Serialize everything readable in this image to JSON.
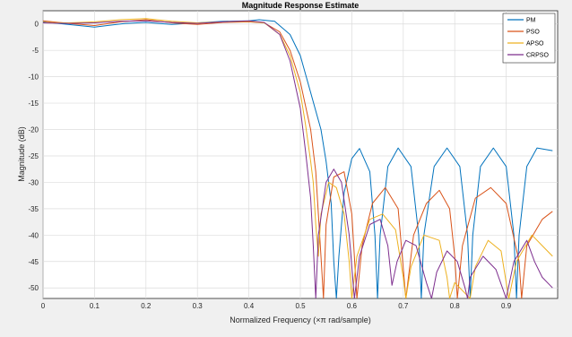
{
  "chart_data": {
    "type": "line",
    "title": "Magnitude Response Estimate",
    "xlabel": "Normalized Frequency (×π rad/sample)",
    "ylabel": "Magnitude (dB)",
    "xlim": [
      0,
      1
    ],
    "ylim": [
      -52,
      2.5
    ],
    "xticks": [
      0,
      0.1,
      0.2,
      0.3,
      0.4,
      0.5,
      0.6,
      0.7,
      0.8,
      0.9
    ],
    "yticks": [
      0,
      -5,
      -10,
      -15,
      -20,
      -25,
      -30,
      -35,
      -40,
      -45,
      -50
    ],
    "grid": true,
    "legend_position": "top-right",
    "series": [
      {
        "name": "PM",
        "color": "#0072bd",
        "points": [
          [
            0,
            0.4
          ],
          [
            0.04,
            0
          ],
          [
            0.1,
            -0.6
          ],
          [
            0.16,
            0.1
          ],
          [
            0.2,
            0.3
          ],
          [
            0.25,
            -0.1
          ],
          [
            0.3,
            0.2
          ],
          [
            0.35,
            0.5
          ],
          [
            0.4,
            0.6
          ],
          [
            0.42,
            0.8
          ],
          [
            0.45,
            0.5
          ],
          [
            0.48,
            -2
          ],
          [
            0.5,
            -6
          ],
          [
            0.52,
            -13
          ],
          [
            0.54,
            -20
          ],
          [
            0.55,
            -26
          ],
          [
            0.56,
            -34
          ],
          [
            0.565,
            -45
          ],
          [
            0.57,
            -52
          ],
          [
            0.575,
            -44
          ],
          [
            0.585,
            -32
          ],
          [
            0.6,
            -25.5
          ],
          [
            0.615,
            -23.6
          ],
          [
            0.635,
            -28
          ],
          [
            0.645,
            -40
          ],
          [
            0.65,
            -52
          ],
          [
            0.655,
            -40
          ],
          [
            0.67,
            -27
          ],
          [
            0.69,
            -23.5
          ],
          [
            0.715,
            -27
          ],
          [
            0.73,
            -40
          ],
          [
            0.735,
            -52
          ],
          [
            0.74,
            -40
          ],
          [
            0.76,
            -27
          ],
          [
            0.785,
            -23.5
          ],
          [
            0.81,
            -27
          ],
          [
            0.825,
            -40
          ],
          [
            0.83,
            -52
          ],
          [
            0.835,
            -40
          ],
          [
            0.85,
            -27
          ],
          [
            0.875,
            -23.5
          ],
          [
            0.9,
            -27
          ],
          [
            0.915,
            -40
          ],
          [
            0.92,
            -52
          ],
          [
            0.925,
            -40
          ],
          [
            0.94,
            -27
          ],
          [
            0.96,
            -23.5
          ],
          [
            0.99,
            -24
          ]
        ]
      },
      {
        "name": "PSO",
        "color": "#d95319",
        "points": [
          [
            0,
            0.6
          ],
          [
            0.05,
            0.1
          ],
          [
            0.1,
            -0.3
          ],
          [
            0.15,
            0.4
          ],
          [
            0.2,
            0.8
          ],
          [
            0.25,
            0.2
          ],
          [
            0.3,
            -0.1
          ],
          [
            0.35,
            0.3
          ],
          [
            0.4,
            0.4
          ],
          [
            0.43,
            0.2
          ],
          [
            0.46,
            -1.5
          ],
          [
            0.48,
            -5
          ],
          [
            0.5,
            -11
          ],
          [
            0.52,
            -20
          ],
          [
            0.53,
            -28
          ],
          [
            0.535,
            -36
          ],
          [
            0.54,
            -44
          ],
          [
            0.545,
            -52
          ],
          [
            0.55,
            -38
          ],
          [
            0.565,
            -29
          ],
          [
            0.585,
            -28
          ],
          [
            0.6,
            -36
          ],
          [
            0.61,
            -52
          ],
          [
            0.62,
            -42
          ],
          [
            0.64,
            -34
          ],
          [
            0.665,
            -31
          ],
          [
            0.69,
            -35
          ],
          [
            0.705,
            -52
          ],
          [
            0.72,
            -40
          ],
          [
            0.745,
            -34
          ],
          [
            0.77,
            -31.5
          ],
          [
            0.79,
            -35
          ],
          [
            0.8,
            -44
          ],
          [
            0.805,
            -52
          ],
          [
            0.815,
            -42
          ],
          [
            0.84,
            -33
          ],
          [
            0.87,
            -31
          ],
          [
            0.9,
            -34
          ],
          [
            0.925,
            -45
          ],
          [
            0.93,
            -52
          ],
          [
            0.94,
            -42
          ],
          [
            0.97,
            -37
          ],
          [
            0.99,
            -35.5
          ]
        ]
      },
      {
        "name": "APSO",
        "color": "#edb120",
        "points": [
          [
            0,
            0.3
          ],
          [
            0.05,
            0.2
          ],
          [
            0.1,
            0.4
          ],
          [
            0.15,
            0.8
          ],
          [
            0.2,
            1.0
          ],
          [
            0.25,
            0.5
          ],
          [
            0.3,
            0.2
          ],
          [
            0.35,
            0.4
          ],
          [
            0.4,
            0.5
          ],
          [
            0.43,
            0.2
          ],
          [
            0.46,
            -2
          ],
          [
            0.48,
            -6
          ],
          [
            0.5,
            -13
          ],
          [
            0.51,
            -19
          ],
          [
            0.52,
            -26
          ],
          [
            0.525,
            -30
          ],
          [
            0.53,
            -38
          ],
          [
            0.535,
            -44
          ],
          [
            0.54,
            -36
          ],
          [
            0.555,
            -30
          ],
          [
            0.57,
            -31
          ],
          [
            0.585,
            -36
          ],
          [
            0.595,
            -45
          ],
          [
            0.6,
            -52
          ],
          [
            0.61,
            -44
          ],
          [
            0.635,
            -37
          ],
          [
            0.66,
            -36
          ],
          [
            0.685,
            -39
          ],
          [
            0.7,
            -48
          ],
          [
            0.705,
            -52
          ],
          [
            0.715,
            -46
          ],
          [
            0.74,
            -40
          ],
          [
            0.77,
            -41
          ],
          [
            0.785,
            -48
          ],
          [
            0.79,
            -52
          ],
          [
            0.8,
            -49
          ],
          [
            0.815,
            -50.5
          ],
          [
            0.83,
            -52
          ],
          [
            0.84,
            -46
          ],
          [
            0.865,
            -41
          ],
          [
            0.89,
            -43
          ],
          [
            0.905,
            -52
          ],
          [
            0.92,
            -45
          ],
          [
            0.95,
            -40
          ],
          [
            0.97,
            -42
          ],
          [
            0.99,
            -44
          ]
        ]
      },
      {
        "name": "CRPSO",
        "color": "#7e2f8e",
        "points": [
          [
            0,
            0.2
          ],
          [
            0.05,
            0.1
          ],
          [
            0.1,
            0.2
          ],
          [
            0.15,
            0.5
          ],
          [
            0.2,
            0.6
          ],
          [
            0.25,
            0.3
          ],
          [
            0.3,
            0.1
          ],
          [
            0.35,
            0.4
          ],
          [
            0.4,
            0.6
          ],
          [
            0.43,
            0.3
          ],
          [
            0.46,
            -2
          ],
          [
            0.48,
            -7
          ],
          [
            0.5,
            -16
          ],
          [
            0.51,
            -24
          ],
          [
            0.52,
            -33
          ],
          [
            0.525,
            -42
          ],
          [
            0.53,
            -52
          ],
          [
            0.535,
            -40
          ],
          [
            0.55,
            -30
          ],
          [
            0.565,
            -27.5
          ],
          [
            0.58,
            -30
          ],
          [
            0.595,
            -40
          ],
          [
            0.605,
            -52
          ],
          [
            0.615,
            -44
          ],
          [
            0.635,
            -38
          ],
          [
            0.655,
            -37
          ],
          [
            0.67,
            -42
          ],
          [
            0.678,
            -49.5
          ],
          [
            0.688,
            -45
          ],
          [
            0.705,
            -41
          ],
          [
            0.725,
            -42
          ],
          [
            0.745,
            -49
          ],
          [
            0.755,
            -52
          ],
          [
            0.765,
            -47
          ],
          [
            0.785,
            -43
          ],
          [
            0.805,
            -45
          ],
          [
            0.82,
            -50
          ],
          [
            0.825,
            -52
          ],
          [
            0.83,
            -48
          ],
          [
            0.855,
            -44
          ],
          [
            0.88,
            -46.5
          ],
          [
            0.9,
            -52
          ],
          [
            0.915,
            -45
          ],
          [
            0.94,
            -41
          ],
          [
            0.955,
            -45
          ],
          [
            0.97,
            -48
          ],
          [
            0.99,
            -50
          ]
        ]
      }
    ]
  }
}
